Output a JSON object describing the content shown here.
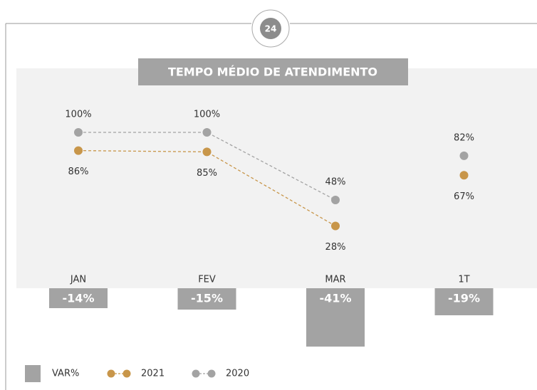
{
  "page_number": "24",
  "chart_data": {
    "type": "line",
    "title": "TEMPO MÉDIO DE ATENDIMENTO",
    "categories": [
      "JAN",
      "FEV",
      "MAR",
      "1T"
    ],
    "separate_last": true,
    "series": [
      {
        "name": "2021",
        "color": "#c8964a",
        "values": [
          86,
          85,
          28,
          67
        ],
        "value_labels": [
          "86%",
          "85%",
          "28%",
          "67%"
        ]
      },
      {
        "name": "2020",
        "color": "#a3a3a3",
        "values": [
          100,
          100,
          48,
          82
        ],
        "value_labels": [
          "100%",
          "100%",
          "48%",
          "82%"
        ]
      }
    ],
    "bars": {
      "name": "VAR%",
      "color": "#a3a3a3",
      "values": [
        -14,
        -15,
        -41,
        -19
      ],
      "value_labels": [
        "-14%",
        "-15%",
        "-41%",
        "-19%"
      ]
    }
  }
}
